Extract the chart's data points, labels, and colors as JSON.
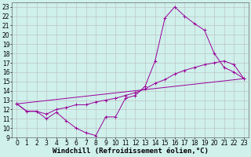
{
  "xlabel": "Windchill (Refroidissement éolien,°C)",
  "bg_color": "#cff0eb",
  "line_color": "#990099",
  "grid_color": "#bbbbbb",
  "xlim": [
    -0.5,
    23.5
  ],
  "ylim": [
    9,
    23.5
  ],
  "xticks": [
    0,
    1,
    2,
    3,
    4,
    5,
    6,
    7,
    8,
    9,
    10,
    11,
    12,
    13,
    14,
    15,
    16,
    17,
    18,
    19,
    20,
    21,
    22,
    23
  ],
  "yticks": [
    9,
    10,
    11,
    12,
    13,
    14,
    15,
    16,
    17,
    18,
    19,
    20,
    21,
    22,
    23
  ],
  "line1_x": [
    0,
    1,
    2,
    3,
    4,
    5,
    6,
    7,
    8,
    9,
    10,
    11,
    12,
    13,
    14,
    15,
    16,
    17,
    18,
    19,
    20,
    21,
    22,
    23
  ],
  "line1_y": [
    12.6,
    11.8,
    11.8,
    11.0,
    11.7,
    10.8,
    10.0,
    9.5,
    9.2,
    11.2,
    11.2,
    13.2,
    13.5,
    14.5,
    17.2,
    21.8,
    23.0,
    22.0,
    21.2,
    20.5,
    18.0,
    16.5,
    16.0,
    15.3
  ],
  "line2_x": [
    0,
    23
  ],
  "line2_y": [
    12.6,
    15.3
  ],
  "line3_x": [
    0,
    1,
    2,
    3,
    4,
    5,
    6,
    7,
    8,
    9,
    10,
    11,
    12,
    13,
    14,
    15,
    16,
    17,
    18,
    19,
    20,
    21,
    22,
    23
  ],
  "line3_y": [
    12.6,
    11.8,
    11.8,
    11.5,
    12.0,
    12.2,
    12.5,
    12.5,
    12.8,
    13.0,
    13.2,
    13.5,
    13.8,
    14.2,
    14.8,
    15.2,
    15.8,
    16.2,
    16.5,
    16.8,
    17.0,
    17.2,
    16.8,
    15.3
  ],
  "font_size_axis": 6.5,
  "font_size_tick": 5.5
}
